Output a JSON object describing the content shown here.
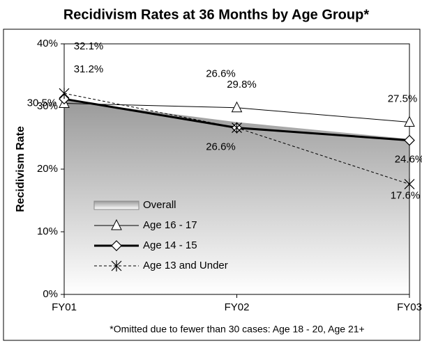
{
  "chart_data": {
    "type": "line",
    "title": "Recidivism Rates at 36 Months by Age Group*",
    "y_label": "Recidivism Rate",
    "footnote": "*Omitted due to fewer than 30 cases: Age 18 - 20, Age 21+",
    "categories": [
      "FY01",
      "FY02",
      "FY03"
    ],
    "ylim": [
      0,
      40
    ],
    "yticks": [
      {
        "value": 0,
        "label": "0%"
      },
      {
        "value": 10,
        "label": "10%"
      },
      {
        "value": 20,
        "label": "20%"
      },
      {
        "value": 30,
        "label": "30%"
      },
      {
        "value": 40,
        "label": "40%"
      }
    ],
    "series": [
      {
        "name": "Overall",
        "style": "area",
        "color": "#999999",
        "values": [
          31,
          27.5,
          24.8
        ]
      },
      {
        "name": "Age 16 - 17",
        "style": "line",
        "marker": "triangle",
        "color": "#000000",
        "values": [
          30.5,
          29.8,
          27.5
        ],
        "value_labels": [
          "30.5%",
          "29.8%",
          "27.5%"
        ]
      },
      {
        "name": "Age 14 - 15",
        "style": "line",
        "marker": "diamond",
        "line_width": 3,
        "color": "#000000",
        "values": [
          31.2,
          26.6,
          24.6
        ],
        "value_labels": [
          "31.2%",
          "26.6%",
          "24.6%"
        ]
      },
      {
        "name": "Age 13 and Under",
        "style": "line",
        "marker": "asterisk",
        "dashed": true,
        "color": "#000000",
        "values": [
          32.1,
          26.6,
          17.6
        ],
        "value_labels": [
          "32.1%",
          "26.6%",
          "17.6%"
        ]
      }
    ]
  }
}
